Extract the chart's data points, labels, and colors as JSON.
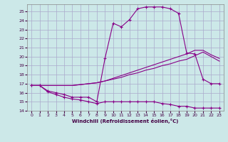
{
  "xlabel": "Windchill (Refroidissement éolien,°C)",
  "ylabel": "",
  "background_color": "#cce8e8",
  "grid_color": "#aaaacc",
  "line_color": "#880088",
  "xlim": [
    -0.5,
    23.5
  ],
  "ylim": [
    14,
    25.8
  ],
  "xticks": [
    0,
    1,
    2,
    3,
    4,
    5,
    6,
    7,
    8,
    9,
    10,
    11,
    12,
    13,
    14,
    15,
    16,
    17,
    18,
    19,
    20,
    21,
    22,
    23
  ],
  "yticks": [
    14,
    15,
    16,
    17,
    18,
    19,
    20,
    21,
    22,
    23,
    24,
    25
  ],
  "curve_main_x": [
    0,
    1,
    2,
    3,
    4,
    5,
    6,
    7,
    8,
    9,
    10,
    11,
    12,
    13,
    14,
    15,
    16,
    17,
    18,
    19,
    20,
    21,
    22,
    23
  ],
  "curve_main_y": [
    16.8,
    16.8,
    16.2,
    16.0,
    15.8,
    15.5,
    15.5,
    15.5,
    15.0,
    19.8,
    23.7,
    23.3,
    24.1,
    25.3,
    25.5,
    25.5,
    25.5,
    25.3,
    24.8,
    20.4,
    20.3,
    17.5,
    17.0,
    17.0
  ],
  "curve_line1_x": [
    0,
    1,
    2,
    3,
    4,
    5,
    6,
    7,
    8,
    9,
    10,
    11,
    12,
    13,
    14,
    15,
    16,
    17,
    18,
    19,
    20,
    21,
    22,
    23
  ],
  "curve_line1_y": [
    16.8,
    16.8,
    16.8,
    16.8,
    16.8,
    16.8,
    16.9,
    17.0,
    17.1,
    17.3,
    17.5,
    17.7,
    18.0,
    18.2,
    18.5,
    18.7,
    19.0,
    19.2,
    19.5,
    19.7,
    20.1,
    20.5,
    20.0,
    19.5
  ],
  "curve_line2_x": [
    0,
    1,
    2,
    3,
    4,
    5,
    6,
    7,
    8,
    9,
    10,
    11,
    12,
    13,
    14,
    15,
    16,
    17,
    18,
    19,
    20,
    21,
    22,
    23
  ],
  "curve_line2_y": [
    16.8,
    16.8,
    16.8,
    16.8,
    16.8,
    16.8,
    16.9,
    17.0,
    17.1,
    17.3,
    17.6,
    17.9,
    18.2,
    18.5,
    18.8,
    19.1,
    19.4,
    19.7,
    20.0,
    20.3,
    20.7,
    20.7,
    20.2,
    19.8
  ],
  "curve_bottom_x": [
    0,
    1,
    2,
    3,
    4,
    5,
    6,
    7,
    8,
    9,
    10,
    11,
    12,
    13,
    14,
    15,
    16,
    17,
    18,
    19,
    20,
    21,
    22,
    23
  ],
  "curve_bottom_y": [
    16.8,
    16.8,
    16.1,
    15.8,
    15.5,
    15.3,
    15.2,
    15.0,
    14.8,
    15.0,
    15.0,
    15.0,
    15.0,
    15.0,
    15.0,
    15.0,
    14.8,
    14.7,
    14.5,
    14.5,
    14.3,
    14.3,
    14.3,
    14.3
  ]
}
